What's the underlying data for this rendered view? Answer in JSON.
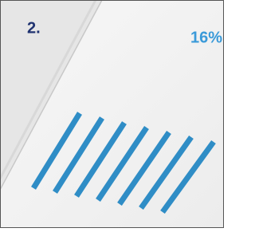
{
  "step_label": "2.",
  "percent_label": "16%"
}
